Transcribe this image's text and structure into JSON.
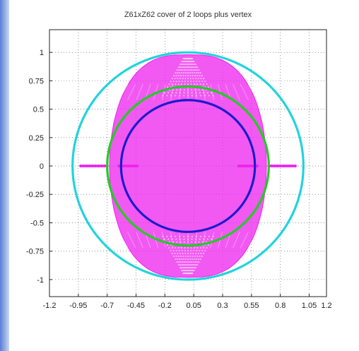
{
  "window": {
    "accent_strip_color": "#7d9be0"
  },
  "chart_data": {
    "type": "scatter",
    "title": "Z61xZ62 cover of 2 loops plus vertex",
    "xlabel": "",
    "ylabel": "",
    "xlim": [
      -1.2,
      1.2
    ],
    "ylim": [
      -1.15,
      1.2
    ],
    "grid": true,
    "grid_style": "dotted",
    "x_ticks": [
      -1.2,
      -0.95,
      -0.7,
      -0.45,
      -0.2,
      0.05,
      0.3,
      0.55,
      0.8,
      1.05,
      1.2
    ],
    "x_tick_labels": [
      "-1.2",
      "-0.95",
      "-0.7",
      "-0.45",
      "-0.2",
      "0.05",
      "0.3",
      "0.55",
      "0.8",
      "1.05",
      "1.2"
    ],
    "y_ticks": [
      1,
      0.75,
      0.5,
      0.25,
      0,
      -0.25,
      -0.5,
      -0.75,
      -1
    ],
    "y_tick_labels": [
      "1",
      "0.75",
      "0.5",
      "0.25",
      "0",
      "-0.25",
      "-0.5",
      "-0.75",
      "-1"
    ],
    "colors": {
      "cyan": "#22d3dd",
      "magenta": "#ee22ee",
      "green": "#22cc22",
      "blue": "#1c1ccc"
    },
    "series": [
      {
        "shape": "circle",
        "cx": 0.0,
        "cy": 0.0,
        "r": 1.0,
        "color": "#22d3dd"
      },
      {
        "shape": "circle",
        "cx": 0.0,
        "cy": 0.0,
        "r": 0.7,
        "color": "#22cc22"
      },
      {
        "shape": "circle",
        "cx": 0.0,
        "cy": 0.0,
        "r": 0.58,
        "color": "#1c1ccc"
      },
      {
        "shape": "lens-region",
        "top": 0.98,
        "bottom": -0.98,
        "half_width": 0.68,
        "color": "#ee22ee"
      },
      {
        "shape": "segment",
        "x": [
          -0.93,
          -0.7
        ],
        "y": 0,
        "color": "#ee22ee"
      },
      {
        "shape": "segment",
        "x": [
          -0.6,
          -0.44
        ],
        "y": 0,
        "color": "#ee22ee"
      },
      {
        "shape": "segment",
        "x": [
          0.44,
          0.6
        ],
        "y": 0,
        "color": "#ee22ee"
      },
      {
        "shape": "segment",
        "x": [
          0.7,
          0.93
        ],
        "y": 0,
        "color": "#ee22ee"
      }
    ]
  }
}
